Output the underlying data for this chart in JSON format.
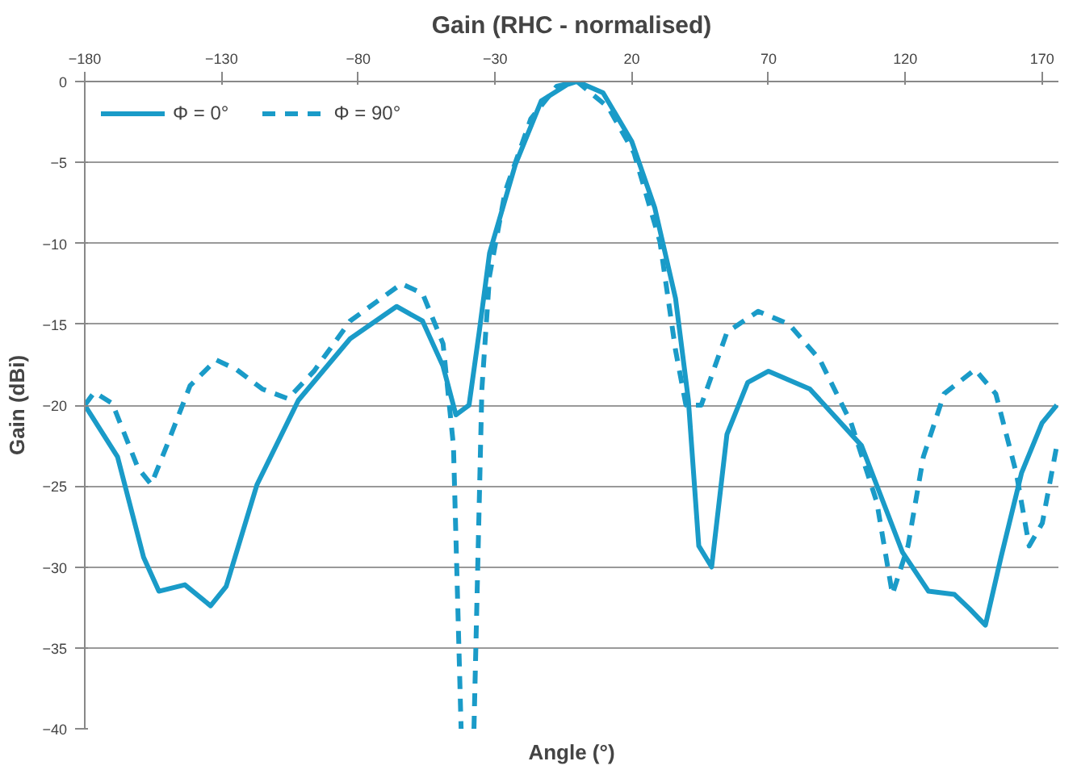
{
  "chart_data": {
    "type": "line",
    "title": "Gain (RHC - normalised)",
    "xlabel": "Angle (°)",
    "ylabel": "Gain (dBi)",
    "xlim": [
      -180,
      176
    ],
    "xticks": [
      -180,
      -130,
      -80,
      -30,
      20,
      70,
      120,
      170
    ],
    "ylim": [
      -40,
      0
    ],
    "yticks": [
      0,
      -5,
      -10,
      -15,
      -20,
      -25,
      -30,
      -35,
      -40
    ],
    "grid": "y",
    "legend": "top left",
    "marker": "none",
    "series": [
      {
        "name": "Φ = 0°",
        "color": "#1a9bc8",
        "line_style": "solid",
        "x": [
          -180,
          -168,
          -158.5,
          -152.9,
          -143.4,
          -134,
          -128.3,
          -117,
          -101.9,
          -83,
          -66,
          -56.5,
          -49,
          -44.3,
          -39.5,
          -35.8,
          -32,
          -22.5,
          -13.1,
          -3.7,
          0,
          9.5,
          20,
          28.4,
          36,
          40.7,
          44.5,
          49.2,
          54.8,
          62.4,
          70,
          85.1,
          104,
          119,
          128.5,
          138,
          143.6,
          149.3,
          155,
          162.5,
          170,
          175.4
        ],
        "values": [
          -20.0,
          -23.2,
          -29.4,
          -31.5,
          -31.1,
          -32.4,
          -31.2,
          -24.9,
          -19.7,
          -15.9,
          -13.9,
          -14.8,
          -17.6,
          -20.6,
          -20.0,
          -15.5,
          -10.6,
          -5.1,
          -1.2,
          -0.2,
          0,
          -0.7,
          -3.7,
          -7.8,
          -13.4,
          -19.7,
          -28.7,
          -30.0,
          -21.8,
          -18.6,
          -17.9,
          -19.0,
          -22.5,
          -29.1,
          -31.5,
          -31.7,
          -32.6,
          -33.6,
          -29.4,
          -24.2,
          -21.1,
          -20.0
        ]
      },
      {
        "name": "Φ = 90°",
        "color": "#1a9bc8",
        "line_style": "dashed",
        "x": [
          -180,
          -176.5,
          -169.9,
          -160.5,
          -155.7,
          -150,
          -141.5,
          -132,
          -124.5,
          -115.1,
          -105.7,
          -96.2,
          -83,
          -64.2,
          -56.5,
          -49,
          -45.2,
          -42.4,
          -40,
          -37.7,
          -34.8,
          -32,
          -26.3,
          -16.9,
          -7.5,
          0,
          11.4,
          20.8,
          30.3,
          36,
          39.8,
          45.4,
          54.8,
          66.2,
          77.5,
          88.8,
          100.2,
          109.6,
          115.3,
          121,
          126.6,
          134.2,
          145.5,
          153.1,
          160.6,
          165.3,
          170.1,
          175.4
        ],
        "values": [
          -20.0,
          -19.2,
          -19.9,
          -23.9,
          -24.9,
          -22.5,
          -18.8,
          -17.2,
          -17.8,
          -19.0,
          -19.6,
          -17.9,
          -14.8,
          -12.5,
          -13.1,
          -16.2,
          -22.5,
          -40,
          null,
          -40,
          -19.0,
          -12.0,
          -6.8,
          -2.3,
          -0.3,
          0,
          -1.6,
          -4.4,
          -9.9,
          -16.6,
          -20.0,
          -20.0,
          -15.5,
          -14.2,
          -15.0,
          -17.2,
          -21.1,
          -26.0,
          -31.7,
          -28.7,
          -23.2,
          -19.3,
          -17.8,
          -19.3,
          -24.2,
          -28.7,
          -27.3,
          -22.5
        ]
      }
    ]
  }
}
